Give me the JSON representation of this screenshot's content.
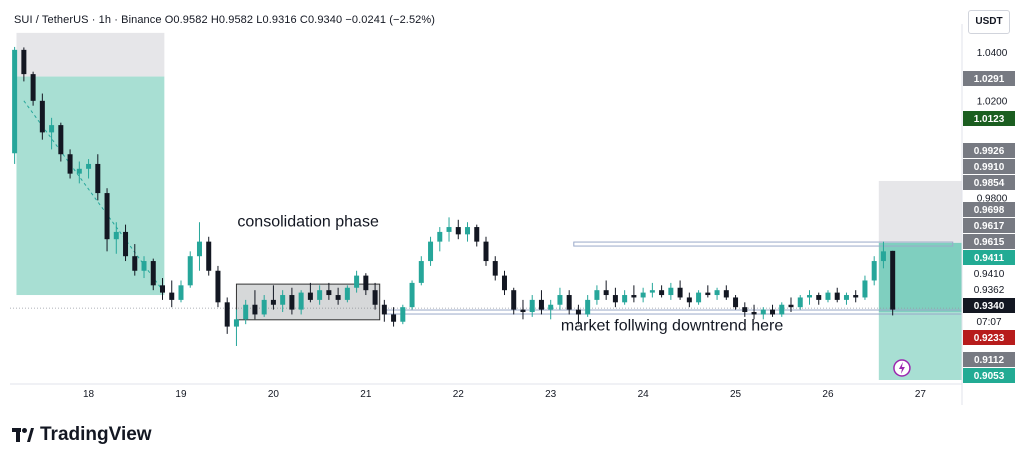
{
  "header": {
    "symbol": "SUI / TetherUS · 1h · Binance",
    "open": "O0.9582",
    "high": "H0.9582",
    "low": "L0.9316",
    "close": "C0.9340",
    "change": "−0.0241 (−2.52%)"
  },
  "currency": "USDT",
  "brand": "TradingView",
  "colors": {
    "bull": "#26a69a",
    "bear": "#131722",
    "tp_zone": "#a8dfd3",
    "sl_zone": "#e6e6e9",
    "label_gray": "#777a82",
    "label_dark": "#131722",
    "label_green": "#1b5e20",
    "label_red": "#b71c1c",
    "label_teal": "#22ab94",
    "sideline": "#9aa9c9"
  },
  "chart_data": {
    "type": "candlestick",
    "title": "SUI / TetherUS · 1h · Binance",
    "ylim": [
      0.905,
      1.05
    ],
    "x_ticks": [
      "18",
      "19",
      "20",
      "21",
      "22",
      "23",
      "24",
      "25",
      "26",
      "27"
    ],
    "y_ticks": [
      "1.0400",
      "1.0200",
      "0.9800"
    ],
    "price_labels": [
      {
        "value": "1.0291",
        "kind": "gray"
      },
      {
        "value": "1.0123",
        "kind": "green"
      },
      {
        "value": "0.9926",
        "kind": "gray"
      },
      {
        "value": "0.9910",
        "kind": "gray"
      },
      {
        "value": "0.9854",
        "kind": "gray"
      },
      {
        "value": "0.9698",
        "kind": "gray"
      },
      {
        "value": "0.9617",
        "kind": "gray"
      },
      {
        "value": "0.9615",
        "kind": "gray"
      },
      {
        "value": "0.9411",
        "kind": "teal"
      },
      {
        "value": "0.9410",
        "kind": "plain"
      },
      {
        "value": "0.9362",
        "kind": "plain"
      },
      {
        "value": "0.9340",
        "kind": "dark"
      },
      {
        "value": "07:07",
        "kind": "plain"
      },
      {
        "value": "0.9233",
        "kind": "red"
      },
      {
        "value": "0.9112",
        "kind": "gray"
      },
      {
        "value": "0.9053",
        "kind": "teal"
      }
    ],
    "annotations": [
      {
        "text": "consolidation phase",
        "x": 20.0,
        "y": 0.9702
      },
      {
        "text": "market follwing downtrend here",
        "x": 23.5,
        "y": 0.9275
      }
    ],
    "consolidation_box": {
      "x0": 19.6,
      "x1": 21.15,
      "y0": 0.9298,
      "y1": 0.9445
    },
    "horizontal_levels": [
      0.961,
      0.933
    ],
    "candles": [
      [
        17.2,
        0.9984,
        1.0422,
        0.994,
        1.041
      ],
      [
        17.3,
        1.041,
        1.042,
        1.028,
        1.031
      ],
      [
        17.4,
        1.031,
        1.032,
        1.018,
        1.02
      ],
      [
        17.5,
        1.02,
        1.023,
        1.004,
        1.007
      ],
      [
        17.6,
        1.007,
        1.013,
        1.0,
        1.01
      ],
      [
        17.7,
        1.01,
        1.011,
        0.995,
        0.998
      ],
      [
        17.8,
        0.998,
        1.0,
        0.988,
        0.99
      ],
      [
        17.9,
        0.99,
        0.995,
        0.986,
        0.992
      ],
      [
        18.0,
        0.992,
        0.996,
        0.988,
        0.994
      ],
      [
        18.1,
        0.994,
        0.998,
        0.979,
        0.982
      ],
      [
        18.2,
        0.982,
        0.984,
        0.958,
        0.963
      ],
      [
        18.3,
        0.963,
        0.97,
        0.957,
        0.966
      ],
      [
        18.4,
        0.966,
        0.969,
        0.954,
        0.956
      ],
      [
        18.5,
        0.956,
        0.961,
        0.948,
        0.95
      ],
      [
        18.6,
        0.95,
        0.956,
        0.947,
        0.954
      ],
      [
        18.7,
        0.954,
        0.955,
        0.942,
        0.944
      ],
      [
        18.8,
        0.944,
        0.947,
        0.938,
        0.941
      ],
      [
        18.9,
        0.941,
        0.946,
        0.935,
        0.938
      ],
      [
        19.0,
        0.938,
        0.946,
        0.937,
        0.944
      ],
      [
        19.1,
        0.944,
        0.958,
        0.943,
        0.956
      ],
      [
        19.2,
        0.956,
        0.97,
        0.95,
        0.962
      ],
      [
        19.3,
        0.962,
        0.964,
        0.948,
        0.95
      ],
      [
        19.4,
        0.95,
        0.952,
        0.935,
        0.937
      ],
      [
        19.5,
        0.937,
        0.939,
        0.924,
        0.927
      ],
      [
        19.6,
        0.927,
        0.934,
        0.919,
        0.93
      ],
      [
        19.7,
        0.93,
        0.938,
        0.928,
        0.936
      ],
      [
        19.8,
        0.936,
        0.942,
        0.93,
        0.932
      ],
      [
        19.9,
        0.932,
        0.94,
        0.931,
        0.938
      ],
      [
        20.0,
        0.938,
        0.944,
        0.934,
        0.936
      ],
      [
        20.1,
        0.936,
        0.942,
        0.933,
        0.94
      ],
      [
        20.2,
        0.94,
        0.943,
        0.932,
        0.934
      ],
      [
        20.3,
        0.934,
        0.942,
        0.932,
        0.941
      ],
      [
        20.4,
        0.941,
        0.945,
        0.937,
        0.938
      ],
      [
        20.5,
        0.938,
        0.944,
        0.936,
        0.942
      ],
      [
        20.6,
        0.942,
        0.945,
        0.938,
        0.94
      ],
      [
        20.7,
        0.94,
        0.943,
        0.936,
        0.938
      ],
      [
        20.8,
        0.938,
        0.944,
        0.937,
        0.943
      ],
      [
        20.9,
        0.943,
        0.95,
        0.941,
        0.948
      ],
      [
        21.0,
        0.948,
        0.949,
        0.94,
        0.942
      ],
      [
        21.1,
        0.942,
        0.945,
        0.934,
        0.936
      ],
      [
        21.2,
        0.936,
        0.938,
        0.929,
        0.932
      ],
      [
        21.3,
        0.932,
        0.935,
        0.927,
        0.929
      ],
      [
        21.4,
        0.929,
        0.936,
        0.928,
        0.935
      ],
      [
        21.5,
        0.935,
        0.946,
        0.934,
        0.945
      ],
      [
        21.6,
        0.945,
        0.956,
        0.944,
        0.954
      ],
      [
        21.7,
        0.954,
        0.964,
        0.952,
        0.962
      ],
      [
        21.8,
        0.962,
        0.968,
        0.958,
        0.966
      ],
      [
        21.9,
        0.966,
        0.972,
        0.962,
        0.968
      ],
      [
        22.0,
        0.968,
        0.971,
        0.963,
        0.965
      ],
      [
        22.1,
        0.965,
        0.97,
        0.962,
        0.968
      ],
      [
        22.2,
        0.968,
        0.969,
        0.96,
        0.962
      ],
      [
        22.3,
        0.962,
        0.964,
        0.952,
        0.954
      ],
      [
        22.4,
        0.954,
        0.956,
        0.946,
        0.948
      ],
      [
        22.5,
        0.948,
        0.95,
        0.94,
        0.942
      ],
      [
        22.6,
        0.942,
        0.943,
        0.932,
        0.934
      ],
      [
        22.7,
        0.934,
        0.938,
        0.93,
        0.933
      ],
      [
        22.8,
        0.933,
        0.94,
        0.931,
        0.938
      ],
      [
        22.9,
        0.938,
        0.942,
        0.932,
        0.934
      ],
      [
        23.0,
        0.934,
        0.938,
        0.93,
        0.936
      ],
      [
        23.1,
        0.936,
        0.943,
        0.934,
        0.94
      ],
      [
        23.2,
        0.94,
        0.942,
        0.932,
        0.934
      ],
      [
        23.3,
        0.934,
        0.936,
        0.928,
        0.932
      ],
      [
        23.4,
        0.932,
        0.94,
        0.931,
        0.938
      ],
      [
        23.5,
        0.938,
        0.944,
        0.936,
        0.942
      ],
      [
        23.6,
        0.942,
        0.946,
        0.938,
        0.94
      ],
      [
        23.7,
        0.94,
        0.943,
        0.935,
        0.937
      ],
      [
        23.8,
        0.937,
        0.942,
        0.936,
        0.94
      ],
      [
        23.9,
        0.94,
        0.944,
        0.937,
        0.939
      ],
      [
        24.0,
        0.939,
        0.943,
        0.937,
        0.941
      ],
      [
        24.1,
        0.941,
        0.945,
        0.939,
        0.942
      ],
      [
        24.2,
        0.942,
        0.944,
        0.939,
        0.94
      ],
      [
        24.3,
        0.94,
        0.945,
        0.938,
        0.943
      ],
      [
        24.4,
        0.943,
        0.946,
        0.938,
        0.939
      ],
      [
        24.5,
        0.939,
        0.941,
        0.935,
        0.937
      ],
      [
        24.6,
        0.937,
        0.942,
        0.936,
        0.941
      ],
      [
        24.7,
        0.941,
        0.944,
        0.939,
        0.94
      ],
      [
        24.8,
        0.94,
        0.943,
        0.938,
        0.942
      ],
      [
        24.9,
        0.942,
        0.944,
        0.938,
        0.939
      ],
      [
        25.0,
        0.939,
        0.94,
        0.934,
        0.935
      ],
      [
        25.1,
        0.935,
        0.937,
        0.931,
        0.933
      ],
      [
        25.2,
        0.933,
        0.936,
        0.93,
        0.932
      ],
      [
        25.3,
        0.932,
        0.935,
        0.93,
        0.934
      ],
      [
        25.4,
        0.934,
        0.936,
        0.931,
        0.932
      ],
      [
        25.5,
        0.932,
        0.937,
        0.931,
        0.936
      ],
      [
        25.6,
        0.936,
        0.939,
        0.933,
        0.935
      ],
      [
        25.7,
        0.935,
        0.94,
        0.934,
        0.939
      ],
      [
        25.8,
        0.939,
        0.942,
        0.936,
        0.94
      ],
      [
        25.9,
        0.94,
        0.941,
        0.936,
        0.938
      ],
      [
        26.0,
        0.938,
        0.942,
        0.937,
        0.941
      ],
      [
        26.1,
        0.941,
        0.943,
        0.937,
        0.938
      ],
      [
        26.2,
        0.938,
        0.941,
        0.936,
        0.94
      ],
      [
        26.3,
        0.94,
        0.942,
        0.937,
        0.939
      ],
      [
        26.4,
        0.939,
        0.948,
        0.938,
        0.946
      ],
      [
        26.5,
        0.946,
        0.956,
        0.944,
        0.954
      ],
      [
        26.6,
        0.954,
        0.962,
        0.951,
        0.958
      ],
      [
        26.7,
        0.9582,
        0.9582,
        0.9316,
        0.934
      ]
    ]
  }
}
